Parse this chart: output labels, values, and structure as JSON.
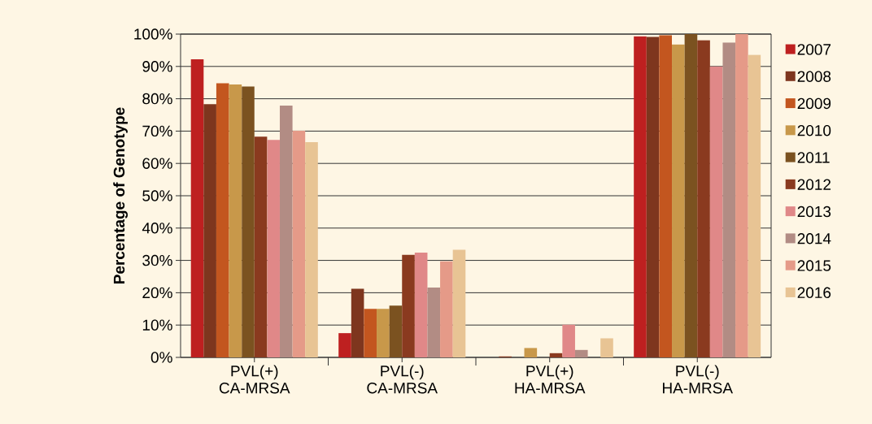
{
  "chart_data": {
    "type": "bar",
    "ylabel": "Percentage of Genotype",
    "categories": [
      "PVL(+) CA-MRSA",
      "PVL(-) CA-MRSA",
      "PVL(+) HA-MRSA",
      "PVL(-) HA-MRSA"
    ],
    "series": [
      {
        "name": "2007",
        "color": "#be2020",
        "values": [
          92.2,
          7.5,
          0,
          99.3
        ]
      },
      {
        "name": "2008",
        "color": "#7e361e",
        "values": [
          78.3,
          21.2,
          0.3,
          99.2
        ]
      },
      {
        "name": "2009",
        "color": "#c3561f",
        "values": [
          84.8,
          15.0,
          0,
          99.7
        ]
      },
      {
        "name": "2010",
        "color": "#c8984a",
        "values": [
          84.4,
          15.0,
          2.9,
          96.8
        ]
      },
      {
        "name": "2011",
        "color": "#7b5220",
        "values": [
          83.8,
          16.0,
          0,
          100
        ]
      },
      {
        "name": "2012",
        "color": "#8a3a1f",
        "values": [
          68.3,
          31.7,
          1.3,
          98.1
        ]
      },
      {
        "name": "2013",
        "color": "#e08888",
        "values": [
          67.3,
          32.4,
          10.1,
          90.0
        ]
      },
      {
        "name": "2014",
        "color": "#b28c84",
        "values": [
          77.9,
          21.6,
          2.3,
          97.4
        ]
      },
      {
        "name": "2015",
        "color": "#e59a88",
        "values": [
          70.1,
          29.7,
          0,
          100
        ]
      },
      {
        "name": "2016",
        "color": "#e8c494",
        "values": [
          66.6,
          33.3,
          5.9,
          93.6
        ]
      }
    ],
    "ylim": [
      0,
      100
    ],
    "yticks": [
      {
        "value": 0,
        "label": "0%"
      },
      {
        "value": 10,
        "label": "10%"
      },
      {
        "value": 20,
        "label": "20%"
      },
      {
        "value": 30,
        "label": "30%"
      },
      {
        "value": 40,
        "label": "40%"
      },
      {
        "value": 50,
        "label": "50%"
      },
      {
        "value": 60,
        "label": "60%"
      },
      {
        "value": 70,
        "label": "70%"
      },
      {
        "value": 80,
        "label": "80%"
      },
      {
        "value": 90,
        "label": "90%"
      },
      {
        "value": 100,
        "label": "100%"
      }
    ],
    "grid": "y",
    "legend": "right"
  }
}
